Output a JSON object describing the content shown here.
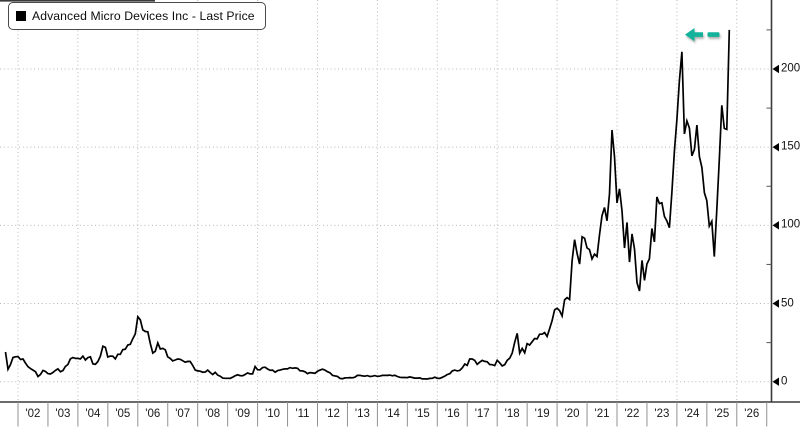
{
  "legend": {
    "label": "Advanced Micro Devices Inc - Last Price",
    "marker_color": "#000000"
  },
  "chart_data": {
    "type": "line",
    "title": "Advanced Micro Devices Inc - Last Price",
    "grid": "dotted",
    "legend_position": "top-left",
    "x_axis": {
      "tick_labels": [
        "'02",
        "'03",
        "'04",
        "'05",
        "'06",
        "'07",
        "'08",
        "'09",
        "'10",
        "'11",
        "'12",
        "'13",
        "'14",
        "'15",
        "'16",
        "'17",
        "'18",
        "'19",
        "'20",
        "'21",
        "'22",
        "'23",
        "'24",
        "'25",
        "'26"
      ],
      "first_cell_start_year": 2002,
      "years_per_cell": 1,
      "gridline_every_years": 2,
      "x_range_years": [
        2001.4,
        2027.0
      ]
    },
    "y_axis": {
      "side": "right",
      "major_ticks": [
        0,
        50,
        100,
        150,
        200
      ],
      "minor_ticks": [
        25,
        75,
        125,
        175,
        225
      ],
      "ylim": [
        -13,
        244
      ]
    },
    "series": [
      {
        "name": "Advanced Micro Devices Inc - Last Price",
        "color": "#000000",
        "start_year": 2001.5833,
        "step_years": 0.0833333,
        "values": [
          19.0,
          7.9,
          11.0,
          15.5,
          15.9,
          16.1,
          14.2,
          14.5,
          11.9,
          9.6,
          8.4,
          7.4,
          6.4,
          3.3,
          4.7,
          7.2,
          6.5,
          5.2,
          4.9,
          5.9,
          7.2,
          8.2,
          6.4,
          7.1,
          9.8,
          11.0,
          14.6,
          15.5,
          14.9,
          14.9,
          14.6,
          16.4,
          13.9,
          15.4,
          15.9,
          11.4,
          11.1,
          12.9,
          16.4,
          22.7,
          22.0,
          15.8,
          16.4,
          16.3,
          14.6,
          17.5,
          17.5,
          20.5,
          20.8,
          23.5,
          23.9,
          27.5,
          30.6,
          41.5,
          39.6,
          33.2,
          32.1,
          31.9,
          24.4,
          18.3,
          19.5,
          24.8,
          20.9,
          21.3,
          20.4,
          15.9,
          14.9,
          13.3,
          13.9,
          14.5,
          14.3,
          13.4,
          12.5,
          13.0,
          12.9,
          10.4,
          7.5,
          6.9,
          6.7,
          6.1,
          6.2,
          7.4,
          5.9,
          4.6,
          6.0,
          4.2,
          3.5,
          2.3,
          2.2,
          2.2,
          2.1,
          2.9,
          3.8,
          4.4,
          3.9,
          3.8,
          4.6,
          5.6,
          5.0,
          5.0,
          9.7,
          7.6,
          7.6,
          9.1,
          9.3,
          8.1,
          7.3,
          7.4,
          6.1,
          7.1,
          7.4,
          7.9,
          8.2,
          8.2,
          9.0,
          8.6,
          8.8,
          8.6,
          7.0,
          6.9,
          6.3,
          5.2,
          5.8,
          5.6,
          5.4,
          6.7,
          7.4,
          8.0,
          7.4,
          6.4,
          5.7,
          4.0,
          3.7,
          3.4,
          2.1,
          1.9,
          2.4,
          2.5,
          2.6,
          2.5,
          2.9,
          4.0,
          4.1,
          3.7,
          3.5,
          3.9,
          3.3,
          3.5,
          3.9,
          3.4,
          3.6,
          4.0,
          4.1,
          4.0,
          4.2,
          3.8,
          4.1,
          3.3,
          2.8,
          2.7,
          2.7,
          2.6,
          3.1,
          2.7,
          2.3,
          2.3,
          2.4,
          1.8,
          1.8,
          1.7,
          2.1,
          2.2,
          2.9,
          2.2,
          2.1,
          2.8,
          3.6,
          4.6,
          5.1,
          6.9,
          7.4,
          6.9,
          7.2,
          8.9,
          11.3,
          10.4,
          14.5,
          14.5,
          13.6,
          11.1,
          12.5,
          13.6,
          13.0,
          12.7,
          11.0,
          10.9,
          10.3,
          13.7,
          12.1,
          10.1,
          10.9,
          13.7,
          15.0,
          18.3,
          25.2,
          30.9,
          18.2,
          21.3,
          18.5,
          24.4,
          23.5,
          25.5,
          27.6,
          27.4,
          30.4,
          30.4,
          31.4,
          29.0,
          33.9,
          39.1,
          45.9,
          47.0,
          45.5,
          42.0,
          52.4,
          53.8,
          52.6,
          77.4,
          90.8,
          82.0,
          75.3,
          92.7,
          91.7,
          85.6,
          84.5,
          78.5,
          81.6,
          80.1,
          93.9,
          106.2,
          111.4,
          102.9,
          120.2,
          161.0,
          143.9,
          114.3,
          123.4,
          109.3,
          85.5,
          101.9,
          76.5,
          94.5,
          84.9,
          63.4,
          58.0,
          77.6,
          64.8,
          75.2,
          78.6,
          98.0,
          89.4,
          118.2,
          113.9,
          114.4,
          105.7,
          102.8,
          98.5,
          121.2,
          147.4,
          167.7,
          192.5,
          211.0,
          158.4,
          166.8,
          162.2,
          144.5,
          148.6,
          164.1,
          144.0,
          137.0,
          120.8,
          115.8,
          99.5,
          102.6,
          80.0,
          110.0,
          141.9,
          176.8,
          162.0,
          161.4,
          225.0
        ]
      }
    ],
    "annotation": {
      "shape": "dashed-arrow-left",
      "color": "#12b29b",
      "points_at_year": 2024.27,
      "at_value": 222
    }
  }
}
